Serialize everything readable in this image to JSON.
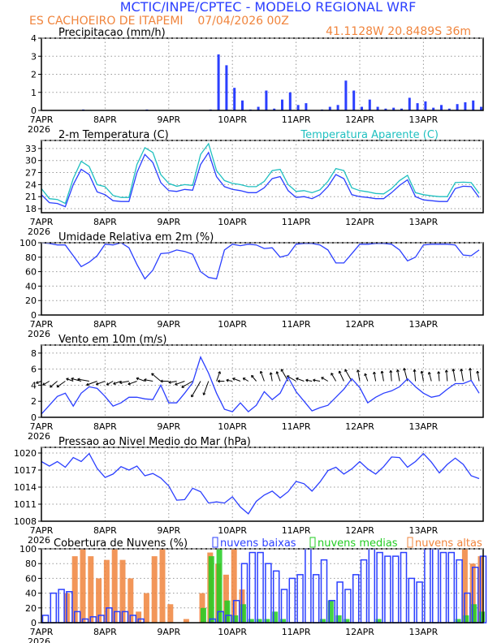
{
  "header": {
    "title": "MCTIC/INPE/CPTEC - MODELO REGIONAL WRF",
    "location_run": "ES CACHOEIRO DE ITAPEMI    07/04/2026 00Z",
    "coords": "41.1128W 20.8489S 36m"
  },
  "colors": {
    "blue": "#2b3fff",
    "orange": "#f0843c",
    "cyan": "#20c0c0",
    "green": "#22cc22",
    "black": "#000000"
  },
  "x_axis": {
    "day_labels": [
      "7APR",
      "8APR",
      "9APR",
      "10APR",
      "11APR",
      "12APR",
      "13APR"
    ],
    "year_label": "2026",
    "step_hours": 3
  },
  "chart_data": [
    {
      "id": "precip",
      "type": "bar",
      "title": "Precipitacao (mm/h)",
      "ylim": [
        0,
        4
      ],
      "yticks": [
        0,
        1,
        2,
        3,
        4
      ],
      "series": [
        {
          "name": "precipitacao",
          "color": "#2b3fff",
          "values": [
            0,
            0,
            0,
            0,
            0,
            0.05,
            0,
            0,
            0,
            0,
            0,
            0,
            0,
            0.05,
            0,
            0,
            0,
            0,
            0,
            0,
            0,
            0.05,
            3.1,
            2.5,
            1.25,
            0.55,
            0.05,
            0.2,
            1.1,
            0.1,
            0.6,
            1.0,
            0.3,
            0.4,
            0,
            0.05,
            0.2,
            0.3,
            1.65,
            1.1,
            0.2,
            0.6,
            0.2,
            0.1,
            0.15,
            0.1,
            0.7,
            0.4,
            0.5,
            0.15,
            0.3,
            0.1,
            0.35,
            0.45,
            0.55,
            0.2
          ]
        }
      ]
    },
    {
      "id": "temp",
      "type": "line",
      "title": "2-m Temperatura (C)",
      "legend": "Temperatura Aparente (C)",
      "ylim": [
        17,
        35
      ],
      "yticks": [
        18,
        21,
        24,
        27,
        30,
        33
      ],
      "series": [
        {
          "name": "Temperatura Aparente (C)",
          "color": "#20c0c0",
          "values": [
            23,
            20.5,
            20.3,
            19.3,
            25.5,
            29.8,
            28.5,
            24,
            23.5,
            21.3,
            20.8,
            20.8,
            29,
            33.2,
            32,
            26.5,
            24.3,
            23.6,
            24,
            23.8,
            31.5,
            34.2,
            27.5,
            25,
            24.3,
            24,
            23.5,
            23.5,
            24.8,
            27.5,
            27.8,
            24,
            22.3,
            22.5,
            22,
            22.7,
            24.8,
            28,
            27.5,
            23.2,
            22.5,
            22.2,
            21.8,
            21.7,
            23,
            25,
            26.3,
            22,
            21.5,
            21.2,
            21,
            21,
            24.5,
            24.6,
            24.5,
            21.8
          ]
        },
        {
          "name": "2-m Temperatura (C)",
          "color": "#2b3fff",
          "values": [
            21.5,
            19.5,
            19.3,
            18.5,
            24,
            27.8,
            26.5,
            22.2,
            21.5,
            20,
            19.8,
            19.8,
            27,
            31.5,
            29.5,
            24.5,
            22.5,
            22.3,
            22.8,
            22.6,
            29,
            32,
            26,
            23.5,
            22.8,
            22.5,
            22,
            22,
            23.2,
            25.5,
            26,
            22.5,
            20.8,
            21,
            20.5,
            21.5,
            23.5,
            26.5,
            25.5,
            21.5,
            21,
            20.8,
            20.5,
            20.5,
            22,
            23.8,
            25.2,
            21,
            20.2,
            20,
            19.8,
            19.8,
            23,
            23.6,
            23.5,
            20.8
          ]
        }
      ]
    },
    {
      "id": "rh",
      "type": "line",
      "title": "Umidade Relativa em 2m (%)",
      "ylim": [
        0,
        100
      ],
      "yticks": [
        0,
        20,
        40,
        60,
        80,
        100
      ],
      "series": [
        {
          "name": "umidade",
          "color": "#2b3fff",
          "values": [
            100,
            99,
            97,
            97,
            82,
            67,
            73,
            82,
            98,
            97,
            100,
            93,
            70,
            50,
            62,
            85,
            86,
            90,
            88,
            84,
            60,
            52,
            50,
            90,
            98,
            96,
            98,
            97,
            92,
            93,
            80,
            83,
            98,
            99,
            99,
            97,
            90,
            72,
            72,
            85,
            98,
            98,
            99,
            99,
            98,
            90,
            75,
            80,
            97,
            98,
            98,
            98,
            97,
            83,
            82,
            90
          ]
        }
      ]
    },
    {
      "id": "wind",
      "type": "line",
      "title": "Vento em 10m (m/s)",
      "ylim": [
        0,
        9
      ],
      "yticks": [
        0,
        2,
        4,
        6,
        8
      ],
      "series": [
        {
          "name": "velocidade",
          "color": "#2b3fff",
          "values": [
            0.4,
            1.5,
            2.6,
            3,
            1.4,
            3,
            3.8,
            3.6,
            2.6,
            1.4,
            1.8,
            2.5,
            2.5,
            2.3,
            2.2,
            4,
            1.8,
            1.8,
            3,
            4.3,
            7.5,
            5.5,
            3,
            1,
            0.7,
            1.8,
            0.7,
            1.5,
            3.2,
            2.2,
            3,
            5,
            3.2,
            2,
            0.8,
            1.2,
            1.5,
            2.5,
            3.5,
            4.8,
            3.7,
            1.8,
            2.5,
            3,
            3.3,
            3.8,
            4.8,
            3.8,
            3,
            2.5,
            2.7,
            3.5,
            4.2,
            4.2,
            4.6,
            3
          ]
        }
      ],
      "vectors": {
        "baseline": 4.5,
        "direction_deg": [
          200,
          210,
          220,
          215,
          160,
          165,
          170,
          200,
          200,
          210,
          200,
          190,
          200,
          160,
          170,
          140,
          180,
          190,
          200,
          210,
          240,
          250,
          70,
          180,
          170,
          160,
          150,
          130,
          110,
          100,
          110,
          120,
          150,
          160,
          170,
          170,
          150,
          120,
          115,
          120,
          100,
          110,
          100,
          100,
          95,
          100,
          105,
          95,
          100,
          105,
          95,
          95,
          100,
          100,
          95,
          100
        ]
      }
    },
    {
      "id": "pres",
      "type": "line",
      "title": "Pressao ao Nivel Medio do Mar (hPa)",
      "ylim": [
        1008,
        1021
      ],
      "yticks": [
        1008,
        1011,
        1014,
        1017,
        1020
      ],
      "series": [
        {
          "name": "pressao",
          "color": "#2b3fff",
          "values": [
            1018.5,
            1017.7,
            1018.5,
            1017.5,
            1019.2,
            1018.5,
            1019.9,
            1017.3,
            1015.7,
            1016.3,
            1017.6,
            1017,
            1017.7,
            1016,
            1016.4,
            1015.6,
            1014.2,
            1011.7,
            1011.8,
            1013.8,
            1013.2,
            1011.2,
            1011.4,
            1011.2,
            1012.3,
            1010.5,
            1009.3,
            1011.5,
            1012.6,
            1013.3,
            1012.1,
            1013.2,
            1015,
            1014.6,
            1013.3,
            1014.9,
            1016.9,
            1017.5,
            1016.3,
            1017.2,
            1018.5,
            1017.2,
            1016.3,
            1017.6,
            1019.3,
            1019.2,
            1017.5,
            1018.5,
            1019.9,
            1018.4,
            1016.5,
            1018,
            1019.1,
            1018,
            1016,
            1015.5
          ]
        }
      ]
    },
    {
      "id": "cloud",
      "type": "bar",
      "title": "Cobertura de Nuvens (%)",
      "ylim": [
        0,
        100
      ],
      "yticks": [
        0,
        20,
        40,
        60,
        80,
        100
      ],
      "series": [
        {
          "name": "nuvens altas",
          "color": "#f0843c",
          "values": [
            0,
            0,
            0,
            40,
            90,
            100,
            90,
            60,
            85,
            100,
            85,
            60,
            15,
            40,
            90,
            100,
            25,
            0,
            5,
            0,
            40,
            95,
            80,
            65,
            100,
            45,
            0,
            0,
            0,
            0,
            0,
            0,
            0,
            0,
            0,
            0,
            0,
            0,
            0,
            0,
            0,
            0,
            0,
            0,
            0,
            0,
            0,
            0,
            0,
            0,
            0,
            0,
            0,
            100,
            80,
            90
          ]
        },
        {
          "name": "nuvens medias",
          "color": "#22cc22",
          "values": [
            0,
            0,
            0,
            0,
            0,
            0,
            0,
            0,
            0,
            0,
            0,
            0,
            0,
            0,
            0,
            0,
            0,
            0,
            0,
            0,
            20,
            90,
            100,
            30,
            10,
            25,
            5,
            5,
            5,
            15,
            5,
            0,
            0,
            0,
            0,
            5,
            30,
            10,
            5,
            0,
            0,
            0,
            5,
            0,
            0,
            0,
            0,
            0,
            0,
            0,
            0,
            0,
            5,
            10,
            25,
            15
          ]
        },
        {
          "name": "nuvens baixas",
          "color": "#2b3fff",
          "values": [
            10,
            40,
            45,
            42,
            15,
            5,
            8,
            10,
            20,
            15,
            15,
            10,
            5,
            0,
            0,
            0,
            0,
            0,
            0,
            0,
            0,
            5,
            15,
            10,
            30,
            80,
            95,
            95,
            80,
            70,
            45,
            60,
            65,
            100,
            65,
            85,
            30,
            55,
            45,
            65,
            85,
            100,
            95,
            90,
            90,
            95,
            60,
            55,
            100,
            100,
            95,
            95,
            85,
            40,
            75,
            90
          ]
        }
      ]
    }
  ]
}
